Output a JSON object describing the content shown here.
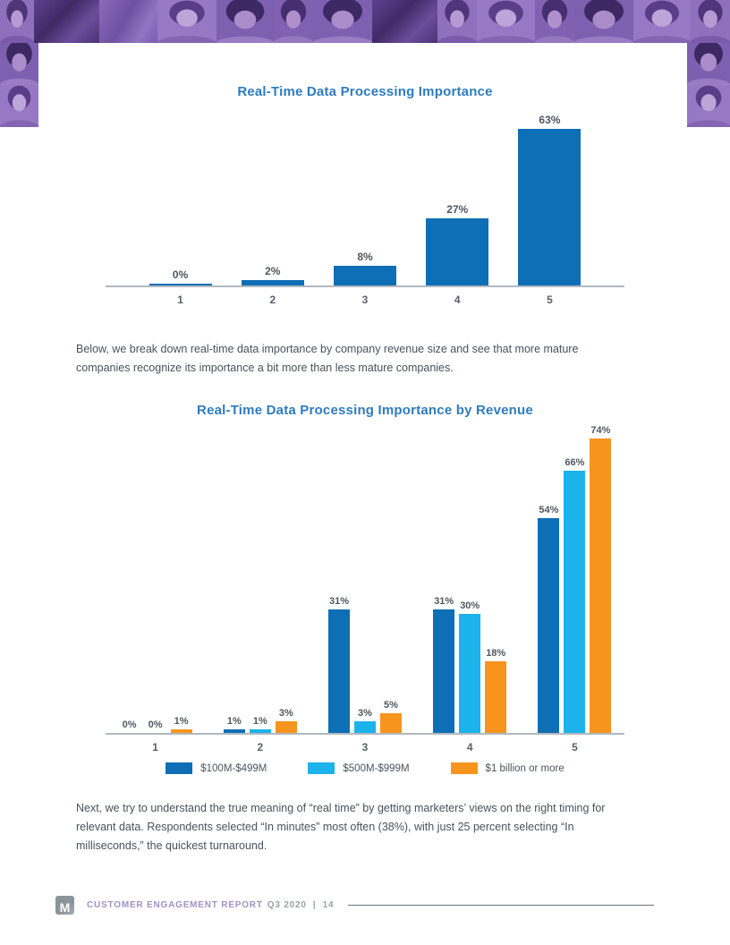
{
  "document": {
    "para1": "Below, we break down real-time data importance by company revenue size and see that more mature companies recognize its importance a bit more than less mature companies.",
    "para2": "Next, we try to understand the true meaning of “real time” by getting marketers’ views on the right timing for relevant data. Respondents selected “In minutes” most often (38%), with just 25 percent selecting “In milliseconds,” the quickest turnaround."
  },
  "footer": {
    "logo_letter": "M",
    "report_title": "CUSTOMER ENGAGEMENT REPORT",
    "issue_page": "Q3 2020  |  14"
  },
  "colors": {
    "title_blue": "#2e7cbe",
    "body_text": "#47525e",
    "axis_gray": "#b0b8bf",
    "dark_blue_bar": "#0e6eb6",
    "light_blue_bar": "#1cb2ea",
    "orange_bar": "#f7941e",
    "footer_purple": "#9e92c8",
    "footer_gray": "#99a1a9",
    "header_purple": "#8465b4"
  },
  "chart_data": [
    {
      "type": "bar",
      "title": "Real-Time Data Processing Importance",
      "categories": [
        "1",
        "2",
        "3",
        "4",
        "5"
      ],
      "values": [
        0,
        2,
        8,
        27,
        63
      ],
      "value_labels": [
        "0%",
        "2%",
        "8%",
        "27%",
        "63%"
      ],
      "unit": "%",
      "bar_color": "#0e6eb6",
      "ylim": [
        0,
        63
      ],
      "grid": false,
      "legend": false,
      "zero_sliver": true
    },
    {
      "type": "bar",
      "title": "Real-Time Data Processing Importance by Revenue",
      "categories": [
        "1",
        "2",
        "3",
        "4",
        "5"
      ],
      "series": [
        {
          "name": "$100M-$499M",
          "color": "#0e6eb6",
          "values": [
            0,
            1,
            31,
            31,
            54
          ]
        },
        {
          "name": "$500M-$999M",
          "color": "#1cb2ea",
          "values": [
            0,
            1,
            3,
            30,
            66
          ]
        },
        {
          "name": "$1 billion or more",
          "color": "#f7941e",
          "values": [
            1,
            3,
            5,
            18,
            74
          ]
        }
      ],
      "unit": "%",
      "ylim": [
        0,
        74
      ],
      "grid": false,
      "legend_position": "bottom",
      "zero_sliver": false
    }
  ]
}
